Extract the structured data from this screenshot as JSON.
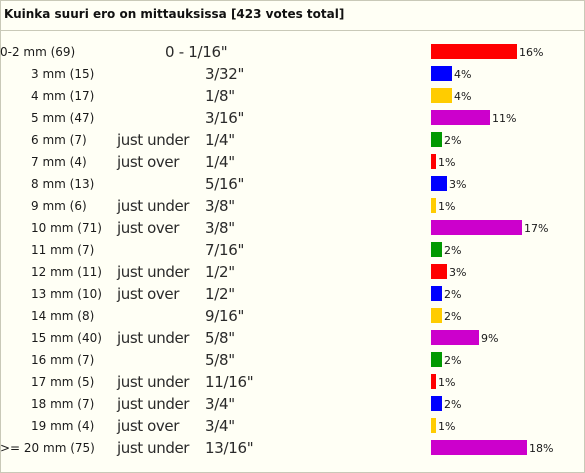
{
  "title": "Kuinka suuri ero on mittauksissa [423 votes total]",
  "colors": {
    "red": "#ff0000",
    "blue": "#0000ff",
    "yellow": "#ffcc00",
    "purple": "#cc00cc",
    "green": "#009900"
  },
  "rows": [
    {
      "mm": "0-2 mm (69)",
      "qual": "",
      "frac": "0 - 1/16\"",
      "pct": "16%",
      "value": 16,
      "color": "red"
    },
    {
      "mm": "3 mm (15)",
      "qual": "",
      "frac": "3/32\"",
      "pct": "4%",
      "value": 4,
      "color": "blue"
    },
    {
      "mm": "4 mm (17)",
      "qual": "",
      "frac": "1/8\"",
      "pct": "4%",
      "value": 4,
      "color": "yellow"
    },
    {
      "mm": "5 mm (47)",
      "qual": "",
      "frac": "3/16\"",
      "pct": "11%",
      "value": 11,
      "color": "purple"
    },
    {
      "mm": "6 mm (7)",
      "qual": "just under",
      "frac": "1/4\"",
      "pct": "2%",
      "value": 2,
      "color": "green"
    },
    {
      "mm": "7 mm (4)",
      "qual": "just over",
      "frac": "1/4\"",
      "pct": "1%",
      "value": 1,
      "color": "red"
    },
    {
      "mm": "8 mm (13)",
      "qual": "",
      "frac": "5/16\"",
      "pct": "3%",
      "value": 3,
      "color": "blue"
    },
    {
      "mm": "9 mm (6)",
      "qual": "just under",
      "frac": "3/8\"",
      "pct": "1%",
      "value": 1,
      "color": "yellow"
    },
    {
      "mm": "10 mm (71)",
      "qual": "just over",
      "frac": "3/8\"",
      "pct": "17%",
      "value": 17,
      "color": "purple"
    },
    {
      "mm": "11 mm (7)",
      "qual": "",
      "frac": "7/16\"",
      "pct": "2%",
      "value": 2,
      "color": "green"
    },
    {
      "mm": "12 mm (11)",
      "qual": "just under",
      "frac": "1/2\"",
      "pct": "3%",
      "value": 3,
      "color": "red"
    },
    {
      "mm": "13 mm (10)",
      "qual": "just over",
      "frac": "1/2\"",
      "pct": "2%",
      "value": 2,
      "color": "blue"
    },
    {
      "mm": "14 mm (8)",
      "qual": "",
      "frac": "9/16\"",
      "pct": "2%",
      "value": 2,
      "color": "yellow"
    },
    {
      "mm": "15 mm (40)",
      "qual": "just under",
      "frac": "5/8\"",
      "pct": "9%",
      "value": 9,
      "color": "purple"
    },
    {
      "mm": "16 mm (7)",
      "qual": "",
      "frac": "5/8\"",
      "pct": "2%",
      "value": 2,
      "color": "green"
    },
    {
      "mm": "17 mm (5)",
      "qual": "just under",
      "frac": "11/16\"",
      "pct": "1%",
      "value": 1,
      "color": "red"
    },
    {
      "mm": "18 mm (7)",
      "qual": "just under",
      "frac": "3/4\"",
      "pct": "2%",
      "value": 2,
      "color": "blue"
    },
    {
      "mm": "19 mm (4)",
      "qual": "just over",
      "frac": "3/4\"",
      "pct": "1%",
      "value": 1,
      "color": "yellow"
    },
    {
      "mm": ">= 20 mm (75)",
      "qual": "just under",
      "frac": "13/16\"",
      "pct": "18%",
      "value": 18,
      "color": "purple"
    }
  ]
}
